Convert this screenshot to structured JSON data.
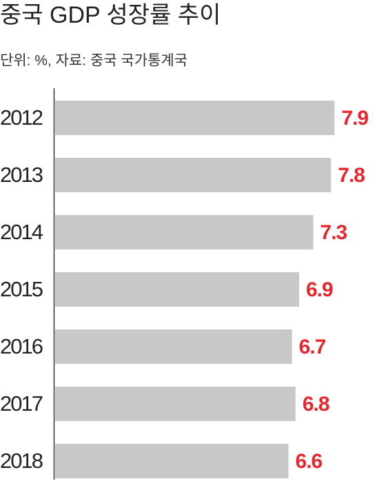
{
  "chart_data": {
    "type": "bar",
    "orientation": "horizontal",
    "title": "중국 GDP 성장률 추이",
    "subtitle": "단위: %, 자료: 중국 국가통계국",
    "categories": [
      "2012",
      "2013",
      "2014",
      "2015",
      "2016",
      "2017",
      "2018"
    ],
    "values": [
      7.9,
      7.8,
      7.3,
      6.9,
      6.7,
      6.8,
      6.6
    ],
    "color": "#c8c8c8",
    "label_color": "#e8262e",
    "xlim": [
      0,
      9
    ]
  }
}
